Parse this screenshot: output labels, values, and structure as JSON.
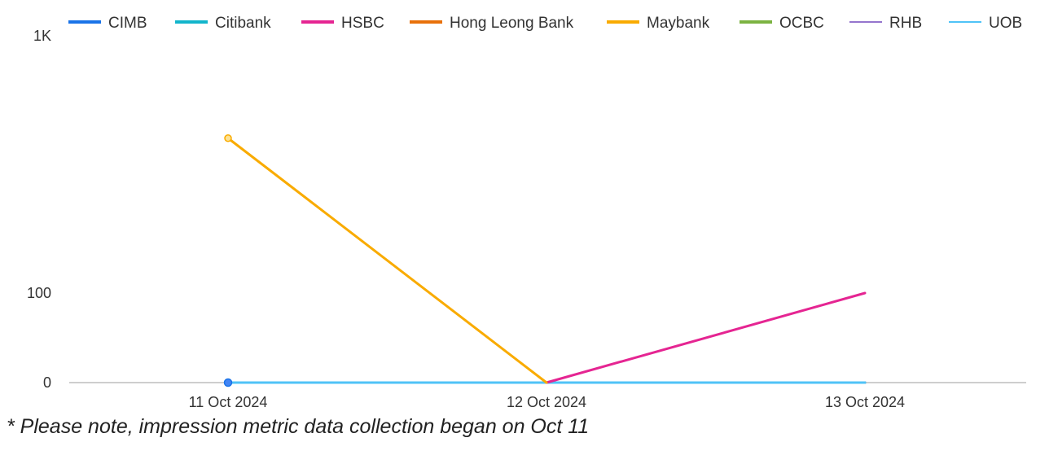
{
  "chart_data": {
    "type": "line",
    "title": "",
    "xlabel": "",
    "ylabel": "",
    "categories": [
      "11 Oct 2024",
      "12 Oct 2024",
      "13 Oct 2024"
    ],
    "y_scale": "symlog",
    "y_ticks": [
      {
        "value": 0,
        "label": "0"
      },
      {
        "value": 100,
        "label": "100"
      },
      {
        "value": 1000,
        "label": "1K"
      }
    ],
    "ylim": [
      0,
      1000
    ],
    "legend_position": "top",
    "grid": false,
    "series": [
      {
        "name": "CIMB",
        "color": "#1a73e8",
        "values": [
          0,
          0,
          0
        ]
      },
      {
        "name": "Citibank",
        "color": "#12b5cb",
        "values": [
          0,
          0,
          0
        ]
      },
      {
        "name": "HSBC",
        "color": "#e52592",
        "values": [
          null,
          0,
          100
        ]
      },
      {
        "name": "Hong Leong Bank",
        "color": "#e8710a",
        "values": [
          0,
          0,
          0
        ]
      },
      {
        "name": "Maybank",
        "color": "#f9ab00",
        "values": [
          400,
          0,
          null
        ]
      },
      {
        "name": "OCBC",
        "color": "#7cb342",
        "values": [
          0,
          0,
          0
        ]
      },
      {
        "name": "RHB",
        "color": "#9575cd",
        "values": [
          0,
          0,
          0
        ]
      },
      {
        "name": "UOB",
        "color": "#4fc3f7",
        "values": [
          0,
          0,
          0
        ]
      }
    ]
  },
  "footnote": "* Please note, impression metric data collection began on Oct 11"
}
